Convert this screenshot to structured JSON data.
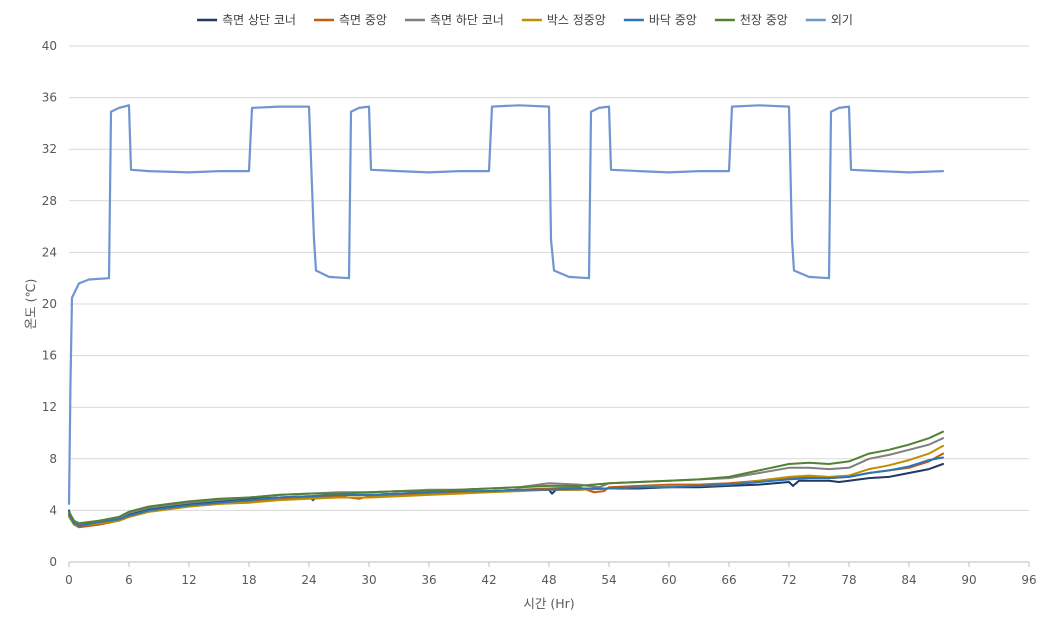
{
  "chart_data": {
    "type": "line",
    "xlabel": "시간 (Hr)",
    "ylabel": "온도 (℃)",
    "xlim": [
      0,
      96
    ],
    "ylim": [
      0,
      40
    ],
    "x_ticks": [
      0,
      6,
      12,
      18,
      24,
      30,
      36,
      42,
      48,
      54,
      60,
      66,
      72,
      78,
      84,
      90,
      96
    ],
    "y_ticks": [
      0,
      4,
      8,
      12,
      16,
      20,
      24,
      28,
      32,
      36,
      40
    ],
    "grid": "horizontal",
    "legend_position": "top",
    "series": [
      {
        "name": "측면 상단 코너",
        "color": "#1f3864",
        "points": [
          [
            0,
            4.0
          ],
          [
            0.3,
            3.2
          ],
          [
            1,
            2.8
          ],
          [
            3,
            3.1
          ],
          [
            5,
            3.3
          ],
          [
            6,
            3.7
          ],
          [
            8,
            4.1
          ],
          [
            10,
            4.3
          ],
          [
            12,
            4.5
          ],
          [
            15,
            4.7
          ],
          [
            18,
            4.9
          ],
          [
            21,
            5.0
          ],
          [
            24,
            5.1
          ],
          [
            24.4,
            4.8
          ],
          [
            24.8,
            5.1
          ],
          [
            27,
            5.2
          ],
          [
            30,
            5.2
          ],
          [
            33,
            5.3
          ],
          [
            36,
            5.4
          ],
          [
            39,
            5.4
          ],
          [
            42,
            5.5
          ],
          [
            45,
            5.6
          ],
          [
            48,
            5.6
          ],
          [
            48.3,
            5.3
          ],
          [
            48.7,
            5.6
          ],
          [
            51,
            5.6
          ],
          [
            54,
            5.7
          ],
          [
            57,
            5.7
          ],
          [
            60,
            5.8
          ],
          [
            63,
            5.8
          ],
          [
            66,
            5.9
          ],
          [
            69,
            6.0
          ],
          [
            72,
            6.2
          ],
          [
            72.4,
            5.9
          ],
          [
            73,
            6.3
          ],
          [
            76,
            6.3
          ],
          [
            77,
            6.2
          ],
          [
            78,
            6.3
          ],
          [
            80,
            6.5
          ],
          [
            82,
            6.6
          ],
          [
            84,
            6.9
          ],
          [
            86,
            7.2
          ],
          [
            87.4,
            7.6
          ]
        ]
      },
      {
        "name": "측면 중앙",
        "color": "#c55a11",
        "points": [
          [
            0,
            3.6
          ],
          [
            0.5,
            2.9
          ],
          [
            1,
            2.7
          ],
          [
            3,
            2.9
          ],
          [
            5,
            3.2
          ],
          [
            6,
            3.5
          ],
          [
            8,
            3.9
          ],
          [
            10,
            4.1
          ],
          [
            12,
            4.3
          ],
          [
            15,
            4.5
          ],
          [
            18,
            4.7
          ],
          [
            21,
            4.9
          ],
          [
            24,
            5.0
          ],
          [
            27,
            5.1
          ],
          [
            29,
            4.9
          ],
          [
            30,
            5.1
          ],
          [
            33,
            5.2
          ],
          [
            36,
            5.3
          ],
          [
            39,
            5.4
          ],
          [
            42,
            5.5
          ],
          [
            45,
            5.6
          ],
          [
            48,
            5.7
          ],
          [
            51,
            5.8
          ],
          [
            52.5,
            5.4
          ],
          [
            53.5,
            5.5
          ],
          [
            54,
            5.8
          ],
          [
            57,
            5.9
          ],
          [
            60,
            6.0
          ],
          [
            63,
            6.0
          ],
          [
            66,
            6.1
          ],
          [
            69,
            6.3
          ],
          [
            72,
            6.5
          ],
          [
            74,
            6.6
          ],
          [
            76,
            6.5
          ],
          [
            78,
            6.6
          ],
          [
            80,
            6.9
          ],
          [
            82,
            7.1
          ],
          [
            84,
            7.3
          ],
          [
            86,
            7.8
          ],
          [
            87.4,
            8.4
          ]
        ]
      },
      {
        "name": "측면 하단 코너",
        "color": "#7f7f7f",
        "points": [
          [
            0,
            3.8
          ],
          [
            0.5,
            3.1
          ],
          [
            1,
            2.9
          ],
          [
            3,
            3.2
          ],
          [
            5,
            3.4
          ],
          [
            6,
            3.8
          ],
          [
            8,
            4.2
          ],
          [
            10,
            4.4
          ],
          [
            12,
            4.6
          ],
          [
            15,
            4.8
          ],
          [
            18,
            5.0
          ],
          [
            21,
            5.2
          ],
          [
            24,
            5.3
          ],
          [
            27,
            5.4
          ],
          [
            30,
            5.4
          ],
          [
            33,
            5.5
          ],
          [
            36,
            5.6
          ],
          [
            39,
            5.6
          ],
          [
            42,
            5.7
          ],
          [
            45,
            5.8
          ],
          [
            48,
            6.1
          ],
          [
            51,
            6.0
          ],
          [
            53,
            5.8
          ],
          [
            54,
            6.1
          ],
          [
            57,
            6.2
          ],
          [
            60,
            6.3
          ],
          [
            63,
            6.4
          ],
          [
            66,
            6.5
          ],
          [
            69,
            6.9
          ],
          [
            72,
            7.3
          ],
          [
            74,
            7.3
          ],
          [
            76,
            7.2
          ],
          [
            78,
            7.3
          ],
          [
            80,
            8.0
          ],
          [
            82,
            8.3
          ],
          [
            84,
            8.7
          ],
          [
            86,
            9.1
          ],
          [
            87.4,
            9.6
          ]
        ]
      },
      {
        "name": "박스 정중앙",
        "color": "#bf8f00",
        "points": [
          [
            0,
            3.5
          ],
          [
            0.5,
            2.9
          ],
          [
            1,
            2.8
          ],
          [
            3,
            3.0
          ],
          [
            5,
            3.2
          ],
          [
            6,
            3.5
          ],
          [
            8,
            3.9
          ],
          [
            10,
            4.1
          ],
          [
            12,
            4.3
          ],
          [
            15,
            4.5
          ],
          [
            18,
            4.6
          ],
          [
            21,
            4.8
          ],
          [
            24,
            4.9
          ],
          [
            27,
            5.0
          ],
          [
            30,
            5.0
          ],
          [
            33,
            5.1
          ],
          [
            36,
            5.2
          ],
          [
            39,
            5.3
          ],
          [
            42,
            5.4
          ],
          [
            45,
            5.5
          ],
          [
            48,
            5.6
          ],
          [
            51,
            5.6
          ],
          [
            54,
            5.7
          ],
          [
            57,
            5.8
          ],
          [
            60,
            5.9
          ],
          [
            63,
            5.9
          ],
          [
            66,
            6.0
          ],
          [
            69,
            6.3
          ],
          [
            72,
            6.6
          ],
          [
            74,
            6.7
          ],
          [
            76,
            6.6
          ],
          [
            78,
            6.7
          ],
          [
            80,
            7.2
          ],
          [
            82,
            7.5
          ],
          [
            84,
            7.9
          ],
          [
            86,
            8.4
          ],
          [
            87.4,
            9.0
          ]
        ]
      },
      {
        "name": "바닥 중앙",
        "color": "#2e75b6",
        "points": [
          [
            0,
            3.7
          ],
          [
            0.5,
            3.0
          ],
          [
            1,
            2.8
          ],
          [
            3,
            3.1
          ],
          [
            5,
            3.3
          ],
          [
            6,
            3.6
          ],
          [
            8,
            4.0
          ],
          [
            10,
            4.2
          ],
          [
            12,
            4.4
          ],
          [
            15,
            4.6
          ],
          [
            18,
            4.8
          ],
          [
            21,
            5.0
          ],
          [
            24,
            5.1
          ],
          [
            27,
            5.2
          ],
          [
            30,
            5.2
          ],
          [
            33,
            5.3
          ],
          [
            36,
            5.4
          ],
          [
            39,
            5.5
          ],
          [
            42,
            5.5
          ],
          [
            45,
            5.6
          ],
          [
            48,
            5.6
          ],
          [
            51,
            5.7
          ],
          [
            54,
            5.7
          ],
          [
            57,
            5.8
          ],
          [
            60,
            5.8
          ],
          [
            63,
            5.9
          ],
          [
            66,
            6.0
          ],
          [
            69,
            6.2
          ],
          [
            72,
            6.4
          ],
          [
            74,
            6.5
          ],
          [
            76,
            6.5
          ],
          [
            78,
            6.6
          ],
          [
            80,
            6.9
          ],
          [
            82,
            7.1
          ],
          [
            84,
            7.4
          ],
          [
            86,
            7.9
          ],
          [
            87.4,
            8.1
          ]
        ]
      },
      {
        "name": "천장 중앙",
        "color": "#548235",
        "points": [
          [
            0,
            3.9
          ],
          [
            0.5,
            3.2
          ],
          [
            1,
            3.0
          ],
          [
            3,
            3.2
          ],
          [
            5,
            3.5
          ],
          [
            6,
            3.9
          ],
          [
            8,
            4.3
          ],
          [
            10,
            4.5
          ],
          [
            12,
            4.7
          ],
          [
            15,
            4.9
          ],
          [
            18,
            5.0
          ],
          [
            21,
            5.2
          ],
          [
            24,
            5.3
          ],
          [
            27,
            5.3
          ],
          [
            30,
            5.4
          ],
          [
            33,
            5.5
          ],
          [
            36,
            5.5
          ],
          [
            39,
            5.6
          ],
          [
            42,
            5.7
          ],
          [
            45,
            5.8
          ],
          [
            48,
            5.9
          ],
          [
            51,
            5.9
          ],
          [
            54,
            6.1
          ],
          [
            57,
            6.2
          ],
          [
            60,
            6.3
          ],
          [
            63,
            6.4
          ],
          [
            66,
            6.6
          ],
          [
            69,
            7.1
          ],
          [
            72,
            7.6
          ],
          [
            74,
            7.7
          ],
          [
            76,
            7.6
          ],
          [
            78,
            7.8
          ],
          [
            80,
            8.4
          ],
          [
            82,
            8.7
          ],
          [
            84,
            9.1
          ],
          [
            86,
            9.6
          ],
          [
            87.4,
            10.1
          ]
        ]
      },
      {
        "name": "외기",
        "color": "#7096d1",
        "points": [
          [
            0,
            4.5
          ],
          [
            0.15,
            14
          ],
          [
            0.3,
            20.5
          ],
          [
            1,
            21.6
          ],
          [
            2,
            21.9
          ],
          [
            4,
            22.0
          ],
          [
            4.2,
            34.9
          ],
          [
            5,
            35.2
          ],
          [
            6,
            35.4
          ],
          [
            6.2,
            30.4
          ],
          [
            8,
            30.3
          ],
          [
            12,
            30.2
          ],
          [
            15,
            30.3
          ],
          [
            18,
            30.3
          ],
          [
            18.3,
            35.2
          ],
          [
            21,
            35.3
          ],
          [
            24,
            35.3
          ],
          [
            24.5,
            25.0
          ],
          [
            24.7,
            22.6
          ],
          [
            26,
            22.1
          ],
          [
            28,
            22.0
          ],
          [
            28.2,
            34.9
          ],
          [
            29,
            35.2
          ],
          [
            30,
            35.3
          ],
          [
            30.2,
            30.4
          ],
          [
            33,
            30.3
          ],
          [
            36,
            30.2
          ],
          [
            39,
            30.3
          ],
          [
            42,
            30.3
          ],
          [
            42.3,
            35.3
          ],
          [
            45,
            35.4
          ],
          [
            48,
            35.3
          ],
          [
            48.2,
            25.0
          ],
          [
            48.5,
            22.6
          ],
          [
            50,
            22.1
          ],
          [
            52,
            22.0
          ],
          [
            52.2,
            34.9
          ],
          [
            53,
            35.2
          ],
          [
            54,
            35.3
          ],
          [
            54.2,
            30.4
          ],
          [
            57,
            30.3
          ],
          [
            60,
            30.2
          ],
          [
            63,
            30.3
          ],
          [
            66,
            30.3
          ],
          [
            66.3,
            35.3
          ],
          [
            69,
            35.4
          ],
          [
            72,
            35.3
          ],
          [
            72.3,
            25.0
          ],
          [
            72.5,
            22.6
          ],
          [
            74,
            22.1
          ],
          [
            76,
            22.0
          ],
          [
            76.2,
            34.9
          ],
          [
            77,
            35.2
          ],
          [
            78,
            35.3
          ],
          [
            78.2,
            30.4
          ],
          [
            81,
            30.3
          ],
          [
            84,
            30.2
          ],
          [
            87.4,
            30.3
          ]
        ]
      }
    ]
  }
}
